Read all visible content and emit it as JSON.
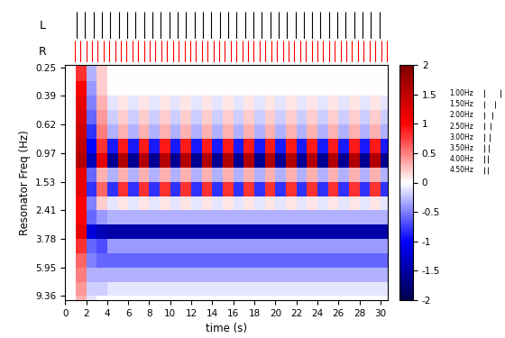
{
  "chart_data": {
    "type": "heatmap",
    "x_label": "time (s)",
    "y_label": "Resonator Freq (Hz)",
    "log": "y",
    "xlim": [
      0,
      30.7
    ],
    "xticks": [
      0,
      2,
      4,
      6,
      8,
      10,
      12,
      14,
      16,
      18,
      20,
      22,
      24,
      26,
      28,
      30
    ],
    "ylim": [
      10.0,
      0.24
    ],
    "yticks": [
      0.25,
      0.39,
      0.62,
      0.97,
      1.53,
      2.41,
      3.78,
      5.95,
      9.36
    ],
    "x_edges": [
      0,
      1,
      2,
      3,
      4,
      5,
      6,
      7,
      8,
      9,
      10,
      11,
      12,
      13,
      14,
      15,
      16,
      17,
      18,
      19,
      20,
      21,
      22,
      23,
      24,
      25,
      26,
      27,
      28,
      29,
      30,
      31
    ],
    "y_edges": [
      0.24,
      0.31,
      0.39,
      0.49,
      0.62,
      0.78,
      0.97,
      1.22,
      1.53,
      1.92,
      2.41,
      3.02,
      3.78,
      4.75,
      5.95,
      7.47,
      9.36,
      10.0
    ],
    "cells": [
      [
        0,
        0.8,
        -0.3,
        0.2,
        0,
        0,
        0,
        0,
        0,
        0,
        0,
        0,
        0,
        0,
        0,
        0,
        0,
        0,
        0,
        0,
        0,
        0,
        0,
        0,
        0,
        0,
        0,
        0,
        0,
        0,
        0
      ],
      [
        0,
        1.0,
        -0.4,
        0.2,
        0,
        0,
        0,
        0,
        0,
        0,
        0,
        0,
        0,
        0,
        0,
        0,
        0,
        0,
        0,
        0,
        0,
        0,
        0,
        0,
        0,
        0,
        0,
        0,
        0,
        0,
        0
      ],
      [
        0,
        1.2,
        -0.5,
        0.3,
        -0.1,
        0.1,
        -0.1,
        0.1,
        -0.1,
        0.1,
        -0.1,
        0.1,
        -0.1,
        0.1,
        -0.1,
        0.1,
        -0.1,
        0.1,
        -0.1,
        0.1,
        -0.1,
        0.1,
        -0.1,
        0.1,
        -0.1,
        0.1,
        -0.1,
        0.1,
        -0.1,
        0.1,
        -0.1
      ],
      [
        0,
        1.3,
        -0.6,
        0.4,
        -0.2,
        0.2,
        -0.2,
        0.2,
        -0.2,
        0.2,
        -0.2,
        0.2,
        -0.2,
        0.2,
        -0.2,
        0.2,
        -0.2,
        0.2,
        -0.2,
        0.2,
        -0.2,
        0.2,
        -0.2,
        0.2,
        -0.2,
        0.2,
        -0.2,
        0.2,
        -0.2,
        0.2,
        -0.2
      ],
      [
        0,
        1.4,
        -0.8,
        0.5,
        -0.3,
        0.3,
        -0.3,
        0.3,
        -0.3,
        0.3,
        -0.3,
        0.3,
        -0.3,
        0.3,
        -0.3,
        0.3,
        -0.3,
        0.3,
        -0.3,
        0.3,
        -0.3,
        0.3,
        -0.3,
        0.3,
        -0.3,
        0.3,
        -0.3,
        0.3,
        -0.3,
        0.3,
        -0.3
      ],
      [
        0,
        1.5,
        -1.0,
        0.8,
        -0.9,
        0.9,
        -0.9,
        0.9,
        -0.9,
        0.9,
        -0.9,
        0.9,
        -0.9,
        0.9,
        -0.9,
        0.9,
        -0.9,
        0.9,
        -0.9,
        0.9,
        -0.9,
        0.9,
        -0.9,
        0.9,
        -0.9,
        0.9,
        -0.9,
        0.9,
        -0.9,
        0.9,
        -0.9
      ],
      [
        0,
        1.6,
        -1.4,
        1.2,
        -1.6,
        1.6,
        -1.6,
        1.6,
        -1.6,
        1.6,
        -1.6,
        1.6,
        -1.6,
        1.6,
        -1.6,
        1.6,
        -1.6,
        1.6,
        -1.6,
        1.6,
        -1.6,
        1.6,
        -1.6,
        1.6,
        -1.6,
        1.6,
        -1.6,
        1.6,
        -1.6,
        1.6,
        -1.6
      ],
      [
        0,
        1.2,
        -0.6,
        0.3,
        -0.3,
        0.3,
        -0.3,
        0.3,
        -0.3,
        0.3,
        -0.3,
        0.3,
        -0.3,
        0.3,
        -0.3,
        0.3,
        -0.3,
        0.3,
        -0.3,
        0.3,
        -0.3,
        0.3,
        -0.3,
        0.3,
        -0.3,
        0.3,
        -0.3,
        0.3,
        -0.3,
        0.3,
        -0.3
      ],
      [
        0,
        1.2,
        -0.8,
        0.6,
        -0.8,
        0.8,
        -0.8,
        0.8,
        -0.8,
        0.8,
        -0.8,
        0.8,
        -0.8,
        0.8,
        -0.8,
        0.8,
        -0.8,
        0.8,
        -0.8,
        0.8,
        -0.8,
        0.8,
        -0.8,
        0.8,
        -0.8,
        0.8,
        -0.8,
        0.8,
        -0.8,
        0.8,
        -0.8
      ],
      [
        0,
        1.0,
        -0.5,
        0.2,
        -0.1,
        0.1,
        -0.1,
        0.1,
        -0.1,
        0.1,
        -0.1,
        0.1,
        -0.1,
        0.1,
        -0.1,
        0.1,
        -0.1,
        0.1,
        -0.1,
        0.1,
        -0.1,
        0.1,
        -0.1,
        0.1,
        -0.1,
        0.1,
        -0.1,
        0.1,
        -0.1,
        0.1,
        -0.1
      ],
      [
        0,
        1.0,
        -0.6,
        -0.4,
        -0.3,
        -0.3,
        -0.3,
        -0.3,
        -0.3,
        -0.3,
        -0.3,
        -0.3,
        -0.3,
        -0.3,
        -0.3,
        -0.3,
        -0.3,
        -0.3,
        -0.3,
        -0.3,
        -0.3,
        -0.3,
        -0.3,
        -0.3,
        -0.3,
        -0.3,
        -0.3,
        -0.3,
        -0.3,
        -0.3,
        -0.3
      ],
      [
        0,
        1.2,
        -1.2,
        -1.4,
        -1.5,
        -1.5,
        -1.5,
        -1.5,
        -1.5,
        -1.5,
        -1.5,
        -1.5,
        -1.5,
        -1.5,
        -1.5,
        -1.5,
        -1.5,
        -1.5,
        -1.5,
        -1.5,
        -1.5,
        -1.5,
        -1.5,
        -1.5,
        -1.5,
        -1.5,
        -1.5,
        -1.5,
        -1.5,
        -1.5,
        -1.5
      ],
      [
        0,
        0.8,
        -0.6,
        -0.7,
        -0.4,
        -0.4,
        -0.4,
        -0.4,
        -0.4,
        -0.4,
        -0.4,
        -0.4,
        -0.4,
        -0.4,
        -0.4,
        -0.4,
        -0.4,
        -0.4,
        -0.4,
        -0.4,
        -0.4,
        -0.4,
        -0.4,
        -0.4,
        -0.4,
        -0.4,
        -0.4,
        -0.4,
        -0.4,
        -0.4,
        -0.4
      ],
      [
        0,
        0.6,
        -0.5,
        -0.6,
        -0.6,
        -0.6,
        -0.6,
        -0.6,
        -0.6,
        -0.6,
        -0.6,
        -0.6,
        -0.6,
        -0.6,
        -0.6,
        -0.6,
        -0.6,
        -0.6,
        -0.6,
        -0.6,
        -0.6,
        -0.6,
        -0.6,
        -0.6,
        -0.6,
        -0.6,
        -0.6,
        -0.6,
        -0.6,
        -0.6,
        -0.6
      ],
      [
        0,
        0.5,
        -0.3,
        -0.3,
        -0.3,
        -0.3,
        -0.3,
        -0.3,
        -0.3,
        -0.3,
        -0.3,
        -0.3,
        -0.3,
        -0.3,
        -0.3,
        -0.3,
        -0.3,
        -0.3,
        -0.3,
        -0.3,
        -0.3,
        -0.3,
        -0.3,
        -0.3,
        -0.3,
        -0.3,
        -0.3,
        -0.3,
        -0.3,
        -0.3,
        -0.3
      ],
      [
        0,
        0.4,
        -0.2,
        -0.2,
        -0.1,
        -0.1,
        -0.1,
        -0.1,
        -0.1,
        -0.1,
        -0.1,
        -0.1,
        -0.1,
        -0.1,
        -0.1,
        -0.1,
        -0.1,
        -0.1,
        -0.1,
        -0.1,
        -0.1,
        -0.1,
        -0.1,
        -0.1,
        -0.1,
        -0.1,
        -0.1,
        -0.1,
        -0.1,
        -0.1,
        -0.1
      ],
      [
        0,
        0.3,
        -0.1,
        0,
        0,
        0,
        0,
        0,
        0,
        0,
        0,
        0,
        0,
        0,
        0,
        0,
        0,
        0,
        0,
        0,
        0,
        0,
        0,
        0,
        0,
        0,
        0,
        0,
        0,
        0,
        0
      ]
    ],
    "color_range": [
      -2,
      2
    ],
    "color_ticks": [
      -2,
      -1.5,
      -1,
      -0.5,
      0,
      0.5,
      1,
      1.5,
      2
    ],
    "spikes": [
      {
        "name": "L",
        "color": "#000000",
        "x": [
          1.1,
          1.9,
          2.7,
          3.5,
          4.3,
          5.1,
          5.9,
          6.7,
          7.5,
          8.3,
          9.1,
          9.9,
          10.7,
          11.5,
          12.3,
          13.1,
          13.9,
          14.7,
          15.5,
          16.3,
          17.1,
          17.9,
          18.7,
          19.5,
          20.3,
          21.1,
          21.9,
          22.7,
          23.5,
          24.3,
          25.1,
          25.9,
          26.7,
          27.5,
          28.3,
          29.1,
          29.9
        ]
      },
      {
        "name": "R",
        "color": "#ff0000",
        "x": [
          0.9,
          1.45,
          2.0,
          2.55,
          3.1,
          3.65,
          4.2,
          4.75,
          5.3,
          5.85,
          6.4,
          6.95,
          7.5,
          8.05,
          8.6,
          9.15,
          9.7,
          10.25,
          10.8,
          11.35,
          11.9,
          12.45,
          13.0,
          13.55,
          14.1,
          14.65,
          15.2,
          15.75,
          16.3,
          16.85,
          17.4,
          17.95,
          18.5,
          19.05,
          19.6,
          20.15,
          20.7,
          21.25,
          21.8,
          22.35,
          22.9,
          23.45,
          24.0,
          24.55,
          25.1,
          25.65,
          26.2,
          26.75,
          27.3,
          27.85,
          28.4,
          28.95,
          29.5,
          30.05,
          30.6
        ]
      }
    ],
    "rate_key": [
      {
        "label": "1.00Hz",
        "value": 1.0
      },
      {
        "label": "1.50Hz",
        "value": 1.5
      },
      {
        "label": "2.00Hz",
        "value": 2.0
      },
      {
        "label": "2.50Hz",
        "value": 2.5
      },
      {
        "label": "3.00Hz",
        "value": 3.0
      },
      {
        "label": "3.50Hz",
        "value": 3.5
      },
      {
        "label": "4.00Hz",
        "value": 4.0
      },
      {
        "label": "4.50Hz",
        "value": 4.5
      }
    ]
  }
}
